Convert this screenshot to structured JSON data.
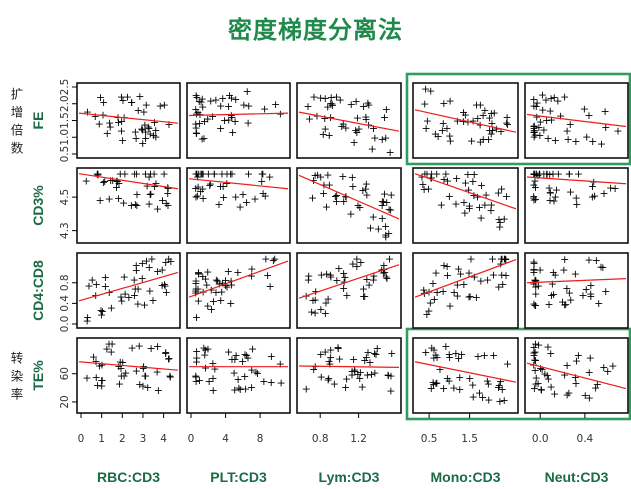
{
  "title": "密度梯度分离法",
  "colors": {
    "title": "#1f8a4c",
    "label": "#1a6b46",
    "fit_line": "#ee1c1c",
    "highlight": "#2e9e5e"
  },
  "chart_data": {
    "type": "scatter",
    "layout": "scatterplot-matrix",
    "rows": [
      {
        "label": "FE",
        "label_cn": [
          "扩",
          "增",
          "倍",
          "数"
        ],
        "ylim": [
          0.5,
          2.5
        ],
        "ticks": [
          "0.5",
          "1.0",
          "1.5",
          "2.0",
          "2.5"
        ],
        "tick_values": [
          0.5,
          1.0,
          1.5,
          2.0,
          2.5
        ]
      },
      {
        "label": "CD3%",
        "label_cn": [],
        "ylim": [
          4.25,
          4.65
        ],
        "ticks": [
          "4.3",
          "4.5"
        ],
        "tick_values": [
          4.3,
          4.5
        ]
      },
      {
        "label": "CD4:CD8",
        "label_cn": [],
        "ylim": [
          0.0,
          1.3
        ],
        "ticks": [
          "0.0",
          "0.4",
          "0.8"
        ],
        "tick_values": [
          0.0,
          0.4,
          0.8
        ]
      },
      {
        "label": "TE%",
        "label_cn": [
          "转",
          "染",
          "率"
        ],
        "ylim": [
          10,
          105
        ],
        "ticks": [
          "20",
          "60"
        ],
        "tick_values": [
          20,
          60
        ]
      }
    ],
    "columns": [
      {
        "label": "RBC:CD3",
        "xlim": [
          0,
          4.6
        ],
        "ticks": [
          "0",
          "1",
          "2",
          "3",
          "4"
        ],
        "tick_values": [
          0,
          1,
          2,
          3,
          4
        ]
      },
      {
        "label": "PLT:CD3",
        "xlim": [
          0,
          11
        ],
        "ticks": [
          "0",
          "4",
          "8"
        ],
        "tick_values": [
          0,
          4,
          8
        ]
      },
      {
        "label": "Lym:CD3",
        "xlim": [
          0.6,
          1.6
        ],
        "ticks": [
          "0.8",
          "1.2"
        ],
        "tick_values": [
          0.8,
          1.2
        ]
      },
      {
        "label": "Mono:CD3",
        "xlim": [
          0.2,
          2.6
        ],
        "ticks": [
          "0.5",
          "1.5"
        ],
        "tick_values": [
          0.5,
          1.5
        ]
      },
      {
        "label": "Neut:CD3",
        "xlim": [
          -0.1,
          0.75
        ],
        "ticks": [
          "0.0",
          "0.4"
        ],
        "tick_values": [
          0.0,
          0.4
        ]
      }
    ],
    "fit_lines": [
      [
        [
          1.72,
          1.42
        ],
        [
          1.65,
          1.72
        ],
        [
          1.75,
          1.18
        ],
        [
          1.82,
          1.15
        ],
        [
          1.68,
          1.32
        ]
      ],
      [
        [
          4.64,
          4.55
        ],
        [
          4.61,
          4.55
        ],
        [
          4.63,
          4.37
        ],
        [
          4.64,
          4.43
        ],
        [
          4.62,
          4.58
        ]
      ],
      [
        [
          0.45,
          1.0
        ],
        [
          0.52,
          1.22
        ],
        [
          0.5,
          1.15
        ],
        [
          0.52,
          1.25
        ],
        [
          0.8,
          0.88
        ]
      ],
      [
        [
          77,
          65
        ],
        [
          70,
          70
        ],
        [
          71,
          69
        ],
        [
          77,
          48
        ],
        [
          75,
          39
        ]
      ]
    ],
    "highlighted_panels": [
      [
        0,
        3
      ],
      [
        0,
        4
      ],
      [
        3,
        3
      ],
      [
        3,
        4
      ]
    ]
  }
}
